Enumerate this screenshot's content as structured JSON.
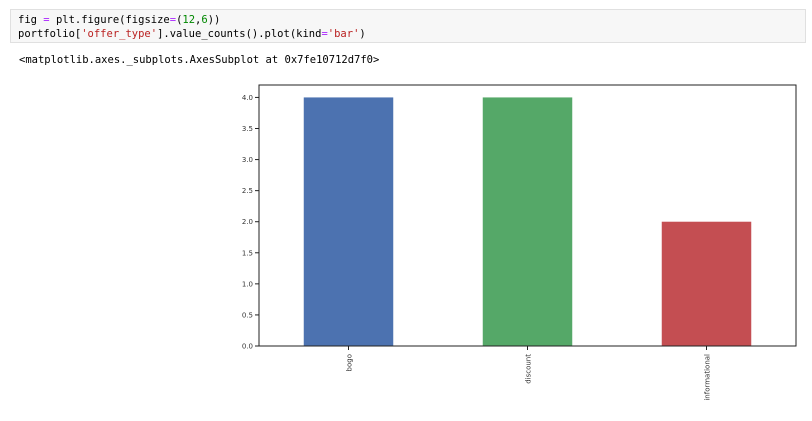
{
  "code_cell": {
    "line1": {
      "prefix": "fig ",
      "op": "=",
      "mid": " plt.figure(figsize",
      "op2": "=",
      "args_open": "(",
      "n1": "12",
      "comma": ",",
      "n2": "6",
      "args_close": "))"
    },
    "line2": {
      "prefix": "portfolio[",
      "str1": "'offer_type'",
      "mid": "].value_counts().plot(kind",
      "op": "=",
      "str2": "'bar'",
      "suffix": ")"
    }
  },
  "output": {
    "repr": "<matplotlib.axes._subplots.AxesSubplot at 0x7fe10712d7f0>"
  },
  "chart_data": {
    "type": "bar",
    "categories": [
      "bogo",
      "discount",
      "informational"
    ],
    "values": [
      4,
      4,
      2
    ],
    "colors": [
      "#4c72b0",
      "#55a868",
      "#c44e52"
    ],
    "ylim": [
      0,
      4.2
    ],
    "yticks": [
      "0.0",
      "0.5",
      "1.0",
      "1.5",
      "2.0",
      "2.5",
      "3.0",
      "3.5",
      "4.0"
    ],
    "title": "",
    "xlabel": "",
    "ylabel": "",
    "grid": false
  }
}
